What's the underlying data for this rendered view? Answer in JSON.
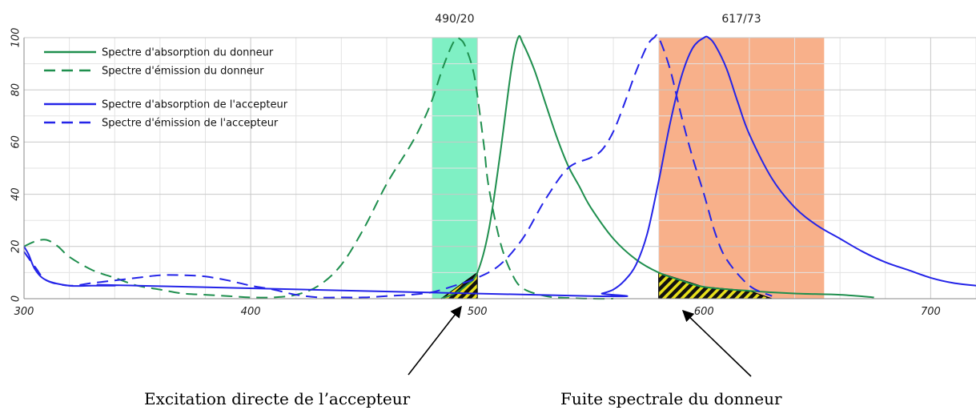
{
  "chart_data": {
    "type": "line",
    "xlim": [
      300,
      720
    ],
    "ylim": [
      0,
      100
    ],
    "x_ticks": [
      300,
      400,
      500,
      600,
      700
    ],
    "y_ticks": [
      0,
      20,
      40,
      60,
      80,
      100
    ],
    "x_tick_labels": [
      "300",
      "400",
      "500",
      "600",
      "700"
    ],
    "y_tick_labels": [
      "0",
      "20",
      "40",
      "60",
      "80",
      "100"
    ],
    "grid": true,
    "legend_position": "top-left",
    "filters": [
      {
        "label": "490/20",
        "range": [
          480,
          500
        ],
        "color": "#7ff0c4"
      },
      {
        "label": "617/73",
        "range": [
          580,
          653
        ],
        "color": "#f8b08a"
      }
    ],
    "series": [
      {
        "name": "Spectre d'absorption du donneur",
        "color": "#1f8f4e",
        "dash": "solid",
        "x": [
          484,
          490,
          495,
          500,
          505,
          510,
          515,
          518,
          520,
          525,
          530,
          535,
          540,
          545,
          550,
          560,
          570,
          580,
          590,
          600,
          620,
          640,
          660,
          675
        ],
        "y": [
          0,
          2,
          5,
          10,
          26,
          55,
          88,
          100,
          98,
          88,
          75,
          62,
          51,
          43,
          35,
          23,
          15,
          10,
          7,
          4.5,
          3,
          2,
          1.5,
          0.5
        ]
      },
      {
        "name": "Spectre d'émission du donneur",
        "color": "#1f8f4e",
        "dash": "dashed",
        "x": [
          300,
          305,
          310,
          315,
          320,
          330,
          340,
          350,
          360,
          370,
          380,
          390,
          400,
          410,
          420,
          430,
          440,
          450,
          460,
          470,
          475,
          480,
          485,
          490,
          493,
          495,
          498,
          500,
          503,
          505,
          510,
          515,
          520,
          530,
          540,
          550,
          560
        ],
        "y": [
          20,
          22,
          22.5,
          20,
          16,
          11,
          8,
          5,
          3.5,
          2,
          1.5,
          1,
          0.5,
          0.5,
          1.5,
          5,
          13,
          27,
          44,
          58,
          66,
          76,
          89,
          99,
          99,
          96,
          88,
          78,
          58,
          43,
          22,
          10,
          4,
          1,
          0.3,
          0,
          0
        ]
      },
      {
        "name": "Spectre d'absorption de l'accepteur",
        "color": "#2424e8",
        "dash": "solid",
        "x": [
          300,
          302,
          305,
          310,
          320,
          330,
          340,
          350,
          550,
          555,
          560,
          565,
          570,
          575,
          580,
          585,
          590,
          595,
          600,
          602,
          605,
          610,
          615,
          620,
          630,
          640,
          650,
          660,
          670,
          680,
          690,
          700,
          710,
          720
        ],
        "y": [
          20,
          17,
          11,
          7,
          5,
          5,
          5,
          5,
          1,
          2,
          3.5,
          7,
          13,
          25,
          45,
          67,
          85,
          96,
          100,
          100,
          97,
          88,
          75,
          63,
          46,
          35,
          28,
          23,
          18,
          14,
          11,
          8,
          6,
          5
        ]
      },
      {
        "name": "Spectre d'émission de l'accepteur",
        "color": "#2424e8",
        "dash": "dashed",
        "x": [
          300,
          305,
          310,
          320,
          330,
          340,
          350,
          360,
          370,
          380,
          390,
          400,
          410,
          420,
          430,
          440,
          450,
          460,
          470,
          480,
          490,
          500,
          510,
          520,
          530,
          540,
          550,
          555,
          560,
          565,
          570,
          575,
          578,
          580,
          585,
          590,
          595,
          600,
          605,
          610,
          620,
          630
        ],
        "y": [
          18,
          12,
          7,
          5,
          6,
          7,
          8,
          9,
          9,
          8.5,
          7,
          5,
          3.5,
          1.5,
          0.5,
          0.5,
          0.5,
          1,
          1.5,
          2.5,
          5,
          8,
          13,
          23,
          38,
          50,
          54,
          57,
          64,
          75,
          87,
          97,
          100,
          100,
          88,
          70,
          54,
          40,
          25,
          15,
          5,
          1
        ]
      }
    ],
    "shaded_regions": [
      {
        "x": [
          484,
          500,
          500
        ],
        "y": [
          0,
          10,
          0
        ]
      },
      {
        "x": [
          580,
          580,
          600,
          620,
          630
        ],
        "y": [
          0,
          10,
          4.5,
          3,
          0
        ]
      }
    ],
    "annotations": [
      {
        "text": "Excitation directe de l’accepteur",
        "target_x": 500
      },
      {
        "text": "Fuite spectrale du donneur",
        "target_x": 600
      }
    ]
  }
}
